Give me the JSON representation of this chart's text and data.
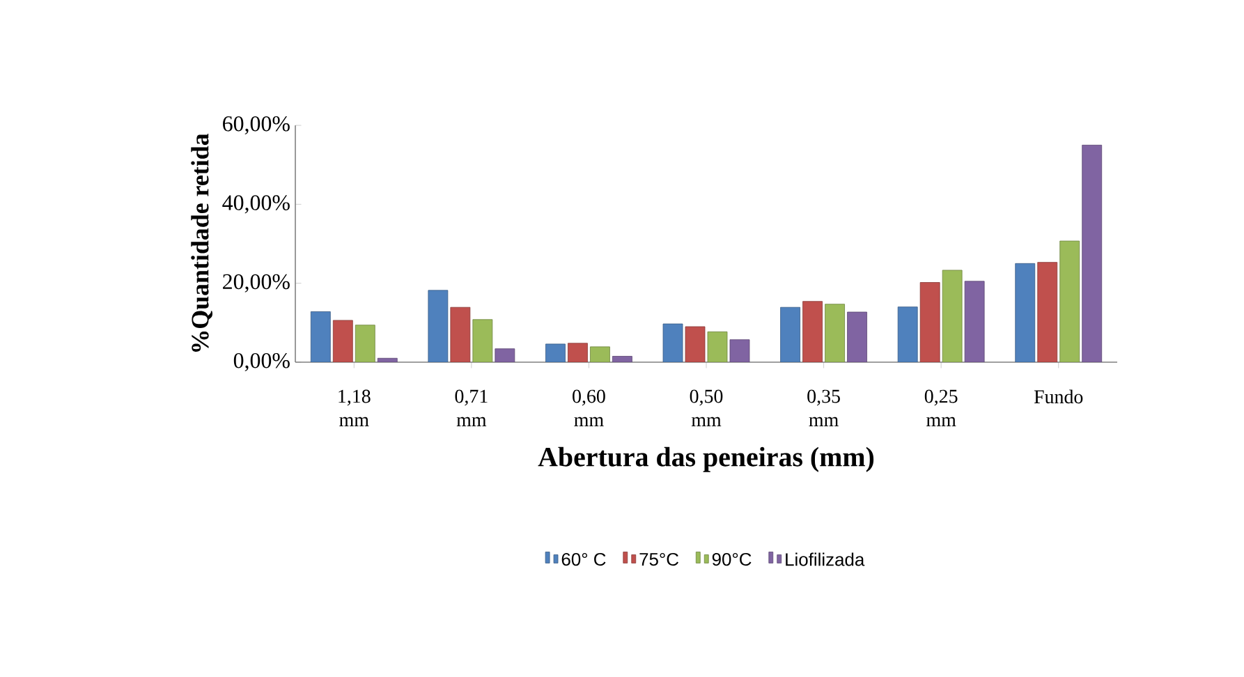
{
  "chart_data": {
    "type": "bar",
    "xlabel": "Abertura das peneiras (mm)",
    "ylabel": "%Quantidade retida",
    "categories": [
      "1,18 mm",
      "0,71 mm",
      "0,60 mm",
      "0,50 mm",
      "0,35 mm",
      "0,25 mm",
      "Fundo"
    ],
    "series": [
      {
        "name": "60° C",
        "color": "#4f81bd",
        "values": [
          12.8,
          18.2,
          4.6,
          9.7,
          13.9,
          14.0,
          25.0
        ]
      },
      {
        "name": "75°C",
        "color": "#c0504d",
        "values": [
          10.6,
          13.9,
          4.8,
          9.0,
          15.4,
          20.2,
          25.3
        ]
      },
      {
        "name": "90°C",
        "color": "#9bbb59",
        "values": [
          9.4,
          10.8,
          3.9,
          7.7,
          14.7,
          23.3,
          30.7
        ]
      },
      {
        "name": "Liofilizada",
        "color": "#8064a2",
        "values": [
          1.0,
          3.4,
          1.5,
          5.7,
          12.7,
          20.5,
          55.0
        ]
      }
    ],
    "ylim": [
      0,
      60
    ],
    "yticks": [
      {
        "value": 0,
        "label": "0,00%"
      },
      {
        "value": 20,
        "label": "20,00%"
      },
      {
        "value": 40,
        "label": "40,00%"
      },
      {
        "value": 60,
        "label": "60,00%"
      }
    ],
    "legend": "bottom"
  }
}
